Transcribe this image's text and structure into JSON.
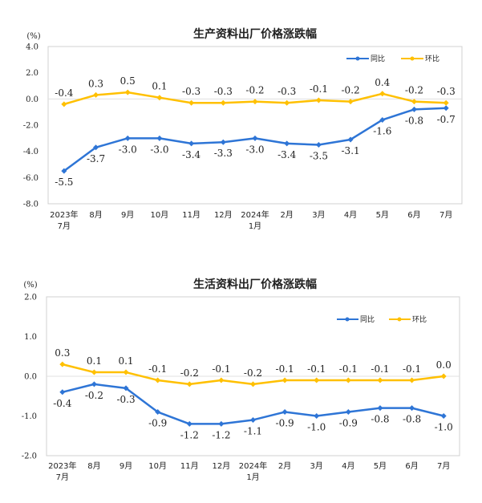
{
  "chart_data": [
    {
      "type": "line",
      "title": "生产资料出厂价格涨跌幅",
      "unit": "(%)",
      "ylim": [
        -8.0,
        4.0
      ],
      "yticks": [
        "4.0",
        "2.0",
        "0.0",
        "-2.0",
        "-4.0",
        "-6.0",
        "-8.0"
      ],
      "ytick_values": [
        4,
        2,
        0,
        -2,
        -4,
        -6,
        -8
      ],
      "categories": [
        [
          "2023年",
          "7月"
        ],
        [
          "8月"
        ],
        [
          "9月"
        ],
        [
          "10月"
        ],
        [
          "11月"
        ],
        [
          "12月"
        ],
        [
          "2024年",
          "1月"
        ],
        [
          "2月"
        ],
        [
          "3月"
        ],
        [
          "4月"
        ],
        [
          "5月"
        ],
        [
          "6月"
        ],
        [
          "7月"
        ]
      ],
      "legend_position": "top-right",
      "series": [
        {
          "name": "同比",
          "color": "#2e75d6",
          "values": [
            -5.5,
            -3.7,
            -3.0,
            -3.0,
            -3.4,
            -3.3,
            -3.0,
            -3.4,
            -3.5,
            -3.1,
            -1.6,
            -0.8,
            -0.7
          ],
          "labels": [
            "-5.5",
            "-3.7",
            "-3.0",
            "-3.0",
            "-3.4",
            "-3.3",
            "-3.0",
            "-3.4",
            "-3.5",
            "-3.1",
            "-1.6",
            "-0.8",
            "-0.7"
          ]
        },
        {
          "name": "环比",
          "color": "#ffc000",
          "values": [
            -0.4,
            0.3,
            0.5,
            0.1,
            -0.3,
            -0.3,
            -0.2,
            -0.3,
            -0.1,
            -0.2,
            0.4,
            -0.2,
            -0.3
          ],
          "labels": [
            "-0.4",
            "0.3",
            "0.5",
            "0.1",
            "-0.3",
            "-0.3",
            "-0.2",
            "-0.3",
            "-0.1",
            "-0.2",
            "0.4",
            "-0.2",
            "-0.3"
          ]
        }
      ]
    },
    {
      "type": "line",
      "title": "生活资料出厂价格涨跌幅",
      "unit": "(%)",
      "ylim": [
        -2.0,
        2.0
      ],
      "yticks": [
        "2.0",
        "1.0",
        "0.0",
        "-1.0",
        "-2.0"
      ],
      "ytick_values": [
        2,
        1,
        0,
        -1,
        -2
      ],
      "categories": [
        [
          "2023年",
          "7月"
        ],
        [
          "8月"
        ],
        [
          "9月"
        ],
        [
          "10月"
        ],
        [
          "11月"
        ],
        [
          "12月"
        ],
        [
          "2024年",
          "1月"
        ],
        [
          "2月"
        ],
        [
          "3月"
        ],
        [
          "4月"
        ],
        [
          "5月"
        ],
        [
          "6月"
        ],
        [
          "7月"
        ]
      ],
      "legend_position": "top-right",
      "series": [
        {
          "name": "同比",
          "color": "#2e75d6",
          "values": [
            -0.4,
            -0.2,
            -0.3,
            -0.9,
            -1.2,
            -1.2,
            -1.1,
            -0.9,
            -1.0,
            -0.9,
            -0.8,
            -0.8,
            -1.0
          ],
          "labels": [
            "-0.4",
            "-0.2",
            "-0.3",
            "-0.9",
            "-1.2",
            "-1.2",
            "-1.1",
            "-0.9",
            "-1.0",
            "-0.9",
            "-0.8",
            "-0.8",
            "-1.0"
          ]
        },
        {
          "name": "环比",
          "color": "#ffc000",
          "values": [
            0.3,
            0.1,
            0.1,
            -0.1,
            -0.2,
            -0.1,
            -0.2,
            -0.1,
            -0.1,
            -0.1,
            -0.1,
            -0.1,
            0.0
          ],
          "labels": [
            "0.3",
            "0.1",
            "0.1",
            "-0.1",
            "-0.2",
            "-0.1",
            "-0.2",
            "-0.1",
            "-0.1",
            "-0.1",
            "-0.1",
            "-0.1",
            "0.0"
          ]
        }
      ]
    }
  ]
}
